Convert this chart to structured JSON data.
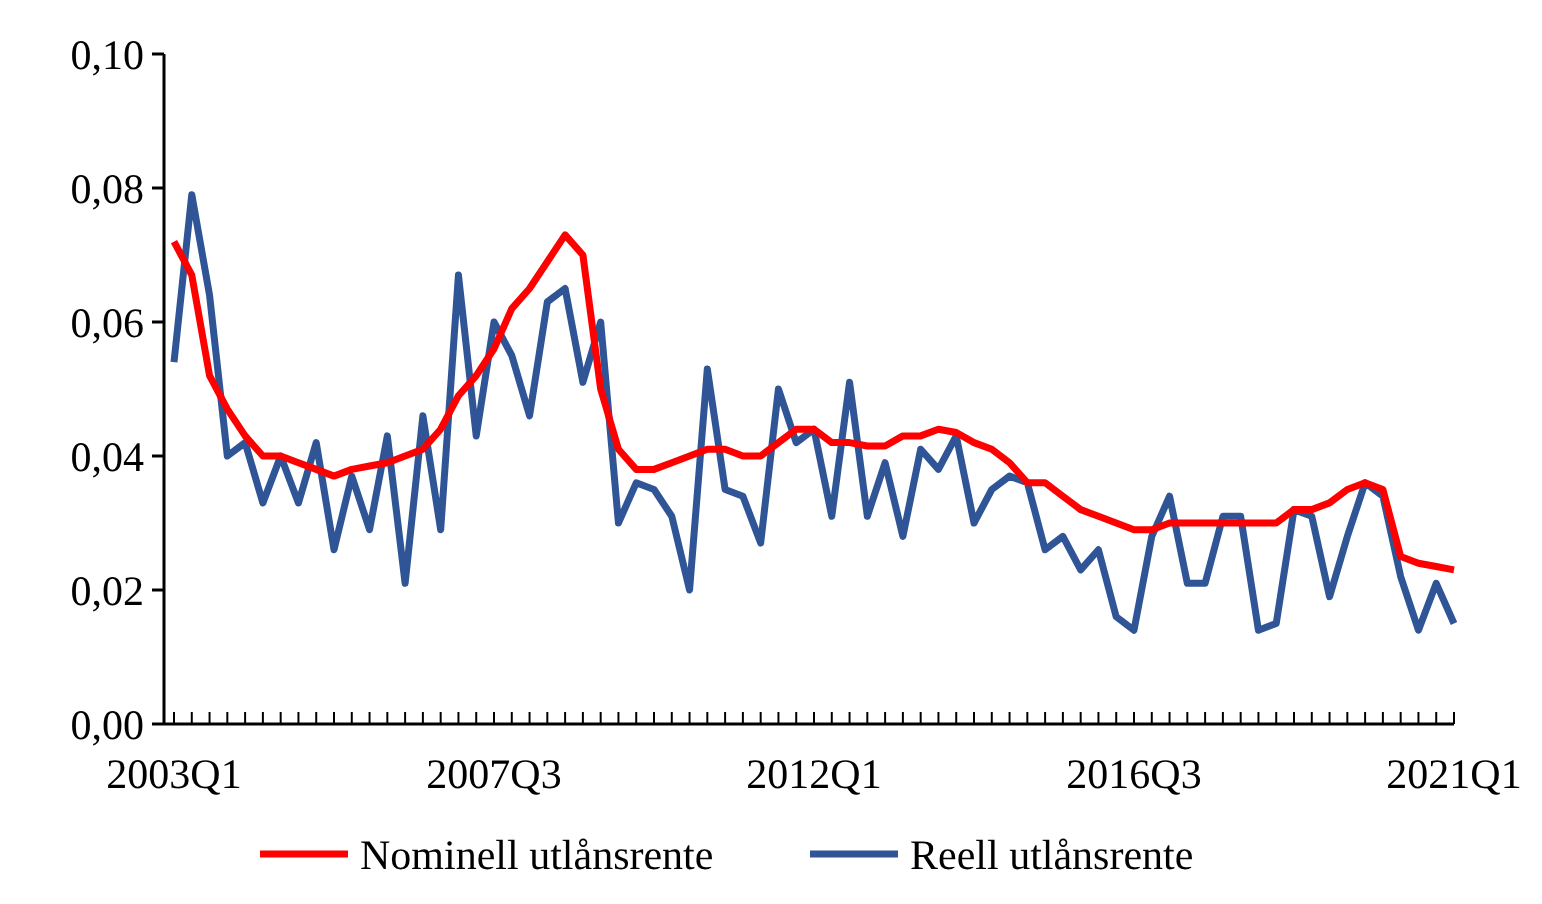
{
  "chart_data": {
    "type": "line",
    "categories": [
      "2003Q1",
      null,
      null,
      null,
      null,
      null,
      null,
      null,
      null,
      null,
      null,
      null,
      null,
      null,
      null,
      null,
      null,
      null,
      "2007Q3",
      null,
      null,
      null,
      null,
      null,
      null,
      null,
      null,
      null,
      null,
      null,
      null,
      null,
      null,
      null,
      null,
      null,
      "2012Q1",
      null,
      null,
      null,
      null,
      null,
      null,
      null,
      null,
      null,
      null,
      null,
      null,
      null,
      null,
      null,
      null,
      null,
      "2016Q3",
      null,
      null,
      null,
      null,
      null,
      null,
      null,
      null,
      null,
      null,
      null,
      null,
      null,
      null,
      null,
      null,
      null,
      "2021Q1"
    ],
    "series": [
      {
        "name": "Nominell utlånsrente",
        "color": "#ff0000",
        "values": [
          0.072,
          0.067,
          0.052,
          0.047,
          0.043,
          0.04,
          0.04,
          0.039,
          0.038,
          0.037,
          0.038,
          0.0385,
          0.039,
          0.04,
          0.041,
          0.044,
          0.049,
          0.052,
          0.056,
          0.062,
          0.065,
          0.069,
          0.073,
          0.07,
          0.05,
          0.041,
          0.038,
          0.038,
          0.039,
          0.04,
          0.041,
          0.041,
          0.04,
          0.04,
          0.042,
          0.044,
          0.044,
          0.042,
          0.042,
          0.0415,
          0.0415,
          0.043,
          0.043,
          0.044,
          0.0435,
          0.042,
          0.041,
          0.039,
          0.036,
          0.036,
          0.034,
          0.032,
          0.031,
          0.03,
          0.029,
          0.029,
          0.03,
          0.03,
          0.03,
          0.03,
          0.03,
          0.03,
          0.03,
          0.032,
          0.032,
          0.033,
          0.035,
          0.036,
          0.035,
          0.025,
          0.024,
          0.0235,
          0.023
        ]
      },
      {
        "name": "Reell utlånsrente",
        "color": "#2f5597",
        "values": [
          0.054,
          0.079,
          0.064,
          0.04,
          0.042,
          0.033,
          0.04,
          0.033,
          0.042,
          0.026,
          0.037,
          0.029,
          0.043,
          0.021,
          0.046,
          0.029,
          0.067,
          0.043,
          0.06,
          0.055,
          0.046,
          0.063,
          0.065,
          0.051,
          0.06,
          0.03,
          0.036,
          0.035,
          0.031,
          0.02,
          0.053,
          0.035,
          0.034,
          0.027,
          0.05,
          0.042,
          0.044,
          0.031,
          0.051,
          0.031,
          0.039,
          0.028,
          0.041,
          0.038,
          0.043,
          0.03,
          0.035,
          0.037,
          0.036,
          0.026,
          0.028,
          0.023,
          0.026,
          0.016,
          0.014,
          0.028,
          0.034,
          0.021,
          0.021,
          0.031,
          0.031,
          0.014,
          0.015,
          0.032,
          0.031,
          0.019,
          0.028,
          0.036,
          0.034,
          0.022,
          0.014,
          0.021,
          0.015
        ]
      }
    ],
    "ylim": [
      0,
      0.1
    ],
    "yticks": [
      {
        "value": 0,
        "label": "0,00"
      },
      {
        "value": 0.02,
        "label": "0,02"
      },
      {
        "value": 0.04,
        "label": "0,04"
      },
      {
        "value": 0.06,
        "label": "0,06"
      },
      {
        "value": 0.08,
        "label": "0,08"
      },
      {
        "value": 0.1,
        "label": "0,10"
      }
    ],
    "grid": false,
    "legend": "bottom",
    "line_style": "solid",
    "marker": "none"
  }
}
